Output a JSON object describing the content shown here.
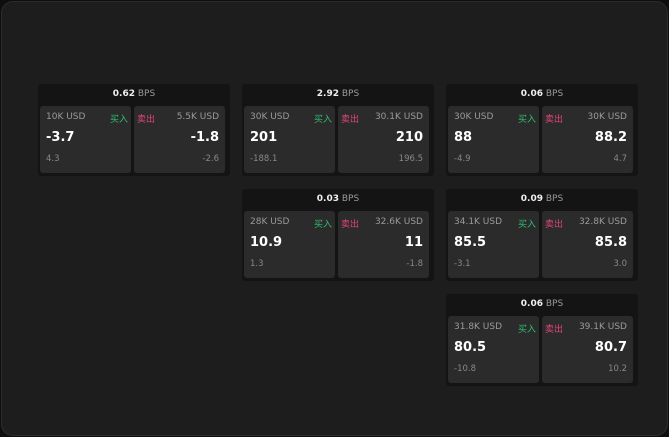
{
  "labels": {
    "unit": "BPS",
    "buy": "买入",
    "sell": "卖出"
  },
  "colors": {
    "buy": "#2fbf71",
    "sell": "#e0457b"
  },
  "cards": [
    {
      "bps": "0.62",
      "buy": {
        "qty": "10K USD",
        "price": "-3.7",
        "change": "4.3"
      },
      "sell": {
        "qty": "5.5K USD",
        "price": "-1.8",
        "change": "-2.6"
      }
    },
    {
      "bps": "2.92",
      "buy": {
        "qty": "30K USD",
        "price": "201",
        "change": "-188.1"
      },
      "sell": {
        "qty": "30.1K USD",
        "price": "210",
        "change": "196.5"
      }
    },
    {
      "bps": "0.06",
      "buy": {
        "qty": "30K USD",
        "price": "88",
        "change": "-4.9"
      },
      "sell": {
        "qty": "30K USD",
        "price": "88.2",
        "change": "4.7"
      }
    },
    {
      "bps": "0.03",
      "buy": {
        "qty": "28K USD",
        "price": "10.9",
        "change": "1.3"
      },
      "sell": {
        "qty": "32.6K USD",
        "price": "11",
        "change": "-1.8"
      }
    },
    {
      "bps": "0.09",
      "buy": {
        "qty": "34.1K USD",
        "price": "85.5",
        "change": "-3.1"
      },
      "sell": {
        "qty": "32.8K USD",
        "price": "85.8",
        "change": "3.0"
      }
    },
    {
      "bps": "0.06",
      "buy": {
        "qty": "31.8K USD",
        "price": "80.5",
        "change": "-10.8"
      },
      "sell": {
        "qty": "39.1K USD",
        "price": "80.7",
        "change": "10.2"
      }
    }
  ]
}
